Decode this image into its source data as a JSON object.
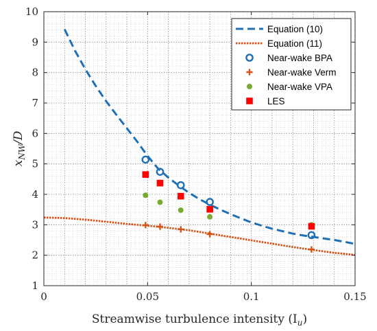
{
  "chart_data": {
    "type": "scatter",
    "title": "",
    "xlabel": "Streamwise turbulence intensity (I_u)",
    "ylabel": "x_NW/D",
    "xlim": [
      0,
      0.15
    ],
    "ylim": [
      1,
      10
    ],
    "grid": "major and minor, dotted",
    "legend_position": "top-right",
    "x_ticks": [
      0,
      0.05,
      0.1,
      0.15
    ],
    "x_tick_labels": [
      "0",
      "0.05",
      "0.1",
      "0.15"
    ],
    "y_ticks": [
      1,
      2,
      3,
      4,
      5,
      6,
      7,
      8,
      9,
      10
    ],
    "y_tick_labels": [
      "1",
      "2",
      "3",
      "4",
      "5",
      "6",
      "7",
      "8",
      "9",
      "10"
    ],
    "series": [
      {
        "name": "Equation (10)",
        "kind": "line",
        "style": "dashed",
        "color": "#1F6FB5",
        "x": [
          0.01,
          0.015,
          0.02,
          0.025,
          0.03,
          0.035,
          0.04,
          0.045,
          0.05,
          0.055,
          0.06,
          0.065,
          0.07,
          0.075,
          0.08,
          0.085,
          0.09,
          0.095,
          0.1,
          0.105,
          0.11,
          0.115,
          0.12,
          0.125,
          0.13,
          0.135,
          0.14,
          0.145,
          0.15
        ],
        "y": [
          9.42,
          8.72,
          8.11,
          7.56,
          7.06,
          6.61,
          6.17,
          5.73,
          5.26,
          4.85,
          4.55,
          4.29,
          4.05,
          3.84,
          3.66,
          3.5,
          3.35,
          3.21,
          3.08,
          2.97,
          2.87,
          2.79,
          2.71,
          2.65,
          2.6,
          2.55,
          2.5,
          2.44,
          2.37
        ]
      },
      {
        "name": "Equation (11)",
        "kind": "line",
        "style": "dotted",
        "color": "#D95319",
        "x": [
          0,
          0.01,
          0.02,
          0.03,
          0.04,
          0.05,
          0.06,
          0.07,
          0.08,
          0.09,
          0.1,
          0.11,
          0.12,
          0.13,
          0.14,
          0.15
        ],
        "y": [
          3.24,
          3.22,
          3.17,
          3.1,
          3.03,
          2.97,
          2.9,
          2.82,
          2.71,
          2.6,
          2.49,
          2.38,
          2.27,
          2.17,
          2.08,
          2.01
        ]
      },
      {
        "name": "Near-wake BPA",
        "kind": "marker",
        "marker": "open-circle",
        "color": "#1F6FB5",
        "x": [
          0.049,
          0.056,
          0.066,
          0.08,
          0.129
        ],
        "y": [
          5.14,
          4.74,
          4.3,
          3.75,
          2.66
        ]
      },
      {
        "name": "Near-wake Verm",
        "kind": "marker",
        "marker": "plus",
        "color": "#D95319",
        "x": [
          0.049,
          0.056,
          0.066,
          0.08,
          0.129
        ],
        "y": [
          2.99,
          2.94,
          2.85,
          2.69,
          2.19
        ]
      },
      {
        "name": "Near-wake VPA",
        "kind": "marker",
        "marker": "filled-circle",
        "color": "#77AC30",
        "x": [
          0.049,
          0.056,
          0.066,
          0.08,
          0.129
        ],
        "y": [
          3.97,
          3.74,
          3.48,
          3.26,
          3.0
        ]
      },
      {
        "name": "LES",
        "kind": "marker",
        "marker": "filled-square",
        "color": "#FF0000",
        "x": [
          0.049,
          0.056,
          0.066,
          0.08,
          0.129
        ],
        "y": [
          4.65,
          4.37,
          3.94,
          3.51,
          2.95
        ]
      }
    ]
  }
}
